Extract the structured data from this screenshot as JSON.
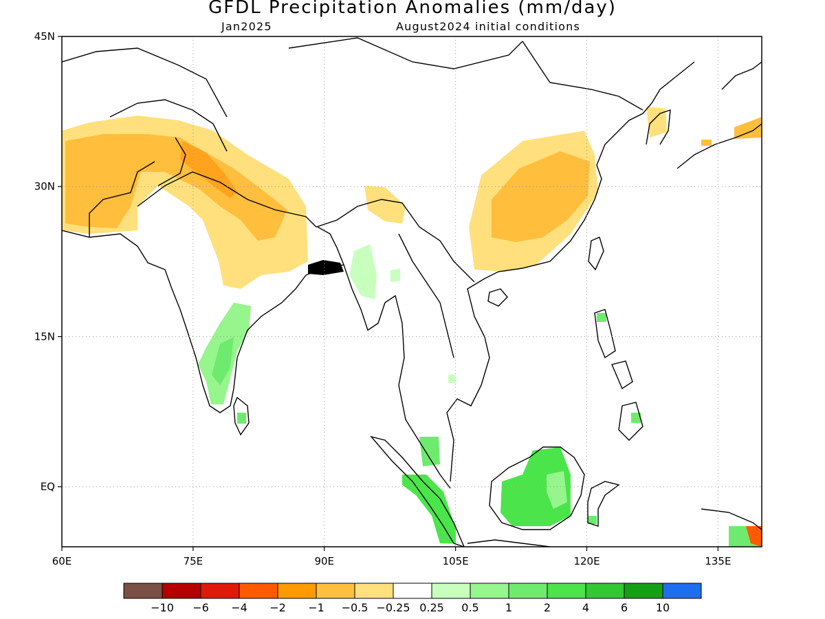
{
  "title": "GFDL Precipitation Anomalies (mm/day)",
  "subtitle_left": "Jan2025",
  "subtitle_right": "August2024 initial conditions",
  "map": {
    "lon_range": [
      60,
      140
    ],
    "lat_range": [
      -6,
      45
    ],
    "lat_ticks": [
      {
        "value": 45,
        "label": "45N"
      },
      {
        "value": 30,
        "label": "30N"
      },
      {
        "value": 15,
        "label": "15N"
      },
      {
        "value": 0,
        "label": "EQ"
      }
    ],
    "lon_ticks": [
      {
        "value": 60,
        "label": "60E"
      },
      {
        "value": 75,
        "label": "75E"
      },
      {
        "value": 90,
        "label": "90E"
      },
      {
        "value": 105,
        "label": "105E"
      },
      {
        "value": 120,
        "label": "120E"
      },
      {
        "value": 135,
        "label": "135E"
      }
    ],
    "grid": "dotted"
  },
  "colorbar": {
    "colors": [
      "#7a5046",
      "#b40000",
      "#e01a0a",
      "#ff5a00",
      "#ff9a00",
      "#ffbe3c",
      "#ffe07c",
      "#ffffff",
      "#c8ffbe",
      "#96f58c",
      "#6eeb6e",
      "#4be54b",
      "#32c832",
      "#14a014",
      "#1e6ef0"
    ],
    "labels": [
      "−10",
      "−6",
      "−4",
      "−2",
      "−1",
      "−0.5",
      "−0.25",
      "0.25",
      "0.5",
      "1",
      "2",
      "4",
      "6",
      "10"
    ]
  }
}
